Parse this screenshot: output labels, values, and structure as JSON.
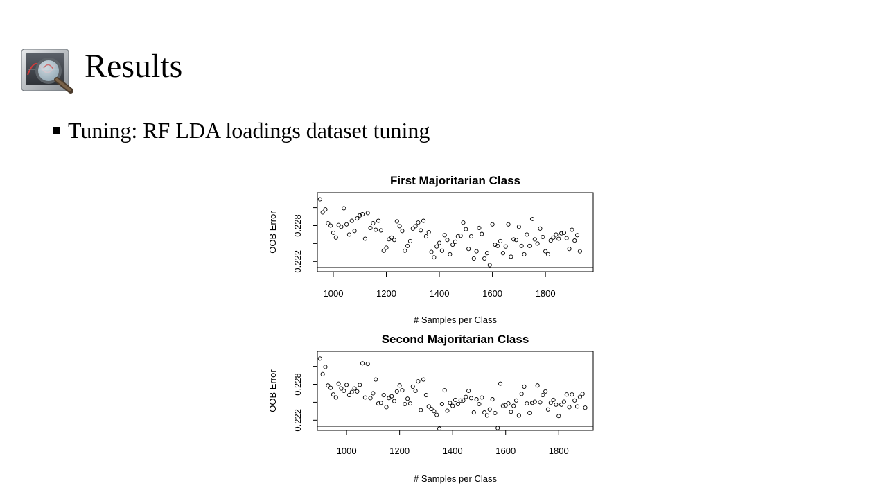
{
  "slide": {
    "title": "Results",
    "bullet": "Tuning: RF LDA loadings dataset tuning",
    "title_icon": "magnifier-over-chart-icon"
  },
  "colors": {
    "text": "#000000",
    "background": "#ffffff",
    "points": "#000000"
  },
  "chart_data": [
    {
      "type": "scatter",
      "title": "First Majoritarian Class",
      "xlabel": "# Samples per Class",
      "ylabel": "OOB Error",
      "xticks": [
        1000,
        1200,
        1400,
        1600,
        1800
      ],
      "xtick_labels": [
        "1000",
        "1200",
        "1400",
        "1600",
        "1800"
      ],
      "yticks_minor": [
        0.222,
        0.225,
        0.228,
        0.231
      ],
      "yticks_labeled": [
        0.222,
        0.228
      ],
      "ytick_labels": [
        "0.222",
        "0.228"
      ],
      "xlim": [
        940,
        1980
      ],
      "ylim": [
        0.2203,
        0.2335
      ],
      "grid": false,
      "points": [
        [
          950,
          0.2324
        ],
        [
          960,
          0.2302
        ],
        [
          970,
          0.2307
        ],
        [
          980,
          0.2284
        ],
        [
          990,
          0.228
        ],
        [
          1000,
          0.2268
        ],
        [
          1010,
          0.226
        ],
        [
          1020,
          0.2281
        ],
        [
          1030,
          0.2278
        ],
        [
          1040,
          0.2309
        ],
        [
          1050,
          0.2282
        ],
        [
          1060,
          0.2265
        ],
        [
          1070,
          0.2288
        ],
        [
          1080,
          0.2271
        ],
        [
          1090,
          0.2292
        ],
        [
          1100,
          0.2297
        ],
        [
          1110,
          0.2299
        ],
        [
          1120,
          0.2258
        ],
        [
          1130,
          0.2301
        ],
        [
          1140,
          0.2276
        ],
        [
          1150,
          0.2284
        ],
        [
          1160,
          0.2273
        ],
        [
          1170,
          0.2288
        ],
        [
          1180,
          0.2272
        ],
        [
          1190,
          0.2238
        ],
        [
          1200,
          0.2243
        ],
        [
          1210,
          0.2257
        ],
        [
          1220,
          0.226
        ],
        [
          1230,
          0.2256
        ],
        [
          1240,
          0.2287
        ],
        [
          1250,
          0.2279
        ],
        [
          1260,
          0.2271
        ],
        [
          1270,
          0.2238
        ],
        [
          1280,
          0.2246
        ],
        [
          1290,
          0.2254
        ],
        [
          1300,
          0.2275
        ],
        [
          1310,
          0.2279
        ],
        [
          1320,
          0.2285
        ],
        [
          1330,
          0.2272
        ],
        [
          1340,
          0.2288
        ],
        [
          1350,
          0.2262
        ],
        [
          1360,
          0.2269
        ],
        [
          1370,
          0.2236
        ],
        [
          1380,
          0.2227
        ],
        [
          1390,
          0.2245
        ],
        [
          1400,
          0.2251
        ],
        [
          1410,
          0.2238
        ],
        [
          1420,
          0.2264
        ],
        [
          1430,
          0.2256
        ],
        [
          1440,
          0.2232
        ],
        [
          1450,
          0.2248
        ],
        [
          1460,
          0.2253
        ],
        [
          1470,
          0.2262
        ],
        [
          1480,
          0.2263
        ],
        [
          1490,
          0.2285
        ],
        [
          1500,
          0.2274
        ],
        [
          1510,
          0.2241
        ],
        [
          1520,
          0.2262
        ],
        [
          1530,
          0.2225
        ],
        [
          1540,
          0.2237
        ],
        [
          1550,
          0.2276
        ],
        [
          1560,
          0.2266
        ],
        [
          1570,
          0.2225
        ],
        [
          1580,
          0.2234
        ],
        [
          1590,
          0.2214
        ],
        [
          1600,
          0.2282
        ],
        [
          1610,
          0.2248
        ],
        [
          1620,
          0.2246
        ],
        [
          1630,
          0.2254
        ],
        [
          1640,
          0.2234
        ],
        [
          1650,
          0.2245
        ],
        [
          1660,
          0.2282
        ],
        [
          1670,
          0.2228
        ],
        [
          1680,
          0.2257
        ],
        [
          1690,
          0.2256
        ],
        [
          1700,
          0.2278
        ],
        [
          1710,
          0.2246
        ],
        [
          1720,
          0.2232
        ],
        [
          1730,
          0.2265
        ],
        [
          1740,
          0.2246
        ],
        [
          1750,
          0.2291
        ],
        [
          1760,
          0.2257
        ],
        [
          1770,
          0.225
        ],
        [
          1780,
          0.2275
        ],
        [
          1790,
          0.2261
        ],
        [
          1800,
          0.2237
        ],
        [
          1810,
          0.2232
        ],
        [
          1820,
          0.2255
        ],
        [
          1830,
          0.226
        ],
        [
          1840,
          0.2265
        ],
        [
          1850,
          0.2258
        ],
        [
          1860,
          0.2267
        ],
        [
          1870,
          0.2268
        ],
        [
          1880,
          0.2259
        ],
        [
          1890,
          0.2241
        ],
        [
          1900,
          0.2273
        ],
        [
          1910,
          0.2255
        ],
        [
          1920,
          0.2264
        ],
        [
          1930,
          0.2237
        ]
      ]
    },
    {
      "type": "scatter",
      "title": "Second Majoritarian Class",
      "xlabel": "# Samples per Class",
      "ylabel": "OOB Error",
      "xticks": [
        1000,
        1200,
        1400,
        1600,
        1800
      ],
      "xtick_labels": [
        "1000",
        "1200",
        "1400",
        "1600",
        "1800"
      ],
      "yticks_minor": [
        0.222,
        0.225,
        0.228,
        0.231
      ],
      "yticks_labeled": [
        0.222,
        0.228
      ],
      "ytick_labels": [
        "0.222",
        "0.228"
      ],
      "xlim": [
        890,
        1930
      ],
      "ylim": [
        0.2203,
        0.2335
      ],
      "grid": false,
      "points": [
        [
          900,
          0.2323
        ],
        [
          910,
          0.2297
        ],
        [
          920,
          0.2309
        ],
        [
          930,
          0.2278
        ],
        [
          940,
          0.2274
        ],
        [
          950,
          0.2263
        ],
        [
          960,
          0.2258
        ],
        [
          970,
          0.2281
        ],
        [
          980,
          0.2273
        ],
        [
          990,
          0.2269
        ],
        [
          1000,
          0.2279
        ],
        [
          1010,
          0.2262
        ],
        [
          1020,
          0.2267
        ],
        [
          1030,
          0.2273
        ],
        [
          1040,
          0.2268
        ],
        [
          1050,
          0.2279
        ],
        [
          1060,
          0.2315
        ],
        [
          1070,
          0.2258
        ],
        [
          1080,
          0.2314
        ],
        [
          1090,
          0.2257
        ],
        [
          1100,
          0.2265
        ],
        [
          1110,
          0.2288
        ],
        [
          1120,
          0.2248
        ],
        [
          1130,
          0.2249
        ],
        [
          1140,
          0.2262
        ],
        [
          1150,
          0.2242
        ],
        [
          1160,
          0.2257
        ],
        [
          1170,
          0.226
        ],
        [
          1180,
          0.2252
        ],
        [
          1190,
          0.2268
        ],
        [
          1200,
          0.2278
        ],
        [
          1210,
          0.227
        ],
        [
          1220,
          0.2247
        ],
        [
          1230,
          0.2256
        ],
        [
          1240,
          0.2248
        ],
        [
          1250,
          0.2276
        ],
        [
          1260,
          0.2269
        ],
        [
          1270,
          0.2285
        ],
        [
          1280,
          0.2237
        ],
        [
          1290,
          0.2288
        ],
        [
          1300,
          0.2262
        ],
        [
          1310,
          0.2243
        ],
        [
          1320,
          0.2239
        ],
        [
          1330,
          0.2235
        ],
        [
          1340,
          0.2229
        ],
        [
          1350,
          0.2206
        ],
        [
          1360,
          0.2247
        ],
        [
          1370,
          0.227
        ],
        [
          1380,
          0.2236
        ],
        [
          1390,
          0.2249
        ],
        [
          1400,
          0.2244
        ],
        [
          1410,
          0.2254
        ],
        [
          1420,
          0.2247
        ],
        [
          1430,
          0.2253
        ],
        [
          1440,
          0.2253
        ],
        [
          1450,
          0.2259
        ],
        [
          1460,
          0.2269
        ],
        [
          1470,
          0.2257
        ],
        [
          1480,
          0.2233
        ],
        [
          1490,
          0.2255
        ],
        [
          1500,
          0.2247
        ],
        [
          1510,
          0.2258
        ],
        [
          1520,
          0.2233
        ],
        [
          1530,
          0.2228
        ],
        [
          1540,
          0.2238
        ],
        [
          1550,
          0.2255
        ],
        [
          1560,
          0.2232
        ],
        [
          1570,
          0.2207
        ],
        [
          1580,
          0.2281
        ],
        [
          1590,
          0.2244
        ],
        [
          1600,
          0.2245
        ],
        [
          1610,
          0.2248
        ],
        [
          1620,
          0.2234
        ],
        [
          1630,
          0.2244
        ],
        [
          1640,
          0.2253
        ],
        [
          1650,
          0.2228
        ],
        [
          1660,
          0.2264
        ],
        [
          1670,
          0.2276
        ],
        [
          1680,
          0.2248
        ],
        [
          1690,
          0.2232
        ],
        [
          1700,
          0.2249
        ],
        [
          1710,
          0.2251
        ],
        [
          1720,
          0.2278
        ],
        [
          1730,
          0.225
        ],
        [
          1740,
          0.2262
        ],
        [
          1750,
          0.2268
        ],
        [
          1760,
          0.2238
        ],
        [
          1770,
          0.2249
        ],
        [
          1780,
          0.2254
        ],
        [
          1790,
          0.2246
        ],
        [
          1800,
          0.2227
        ],
        [
          1810,
          0.2246
        ],
        [
          1820,
          0.2251
        ],
        [
          1830,
          0.2263
        ],
        [
          1840,
          0.2242
        ],
        [
          1850,
          0.2263
        ],
        [
          1860,
          0.2253
        ],
        [
          1870,
          0.2243
        ],
        [
          1880,
          0.2259
        ],
        [
          1890,
          0.2264
        ],
        [
          1900,
          0.2241
        ]
      ]
    }
  ]
}
